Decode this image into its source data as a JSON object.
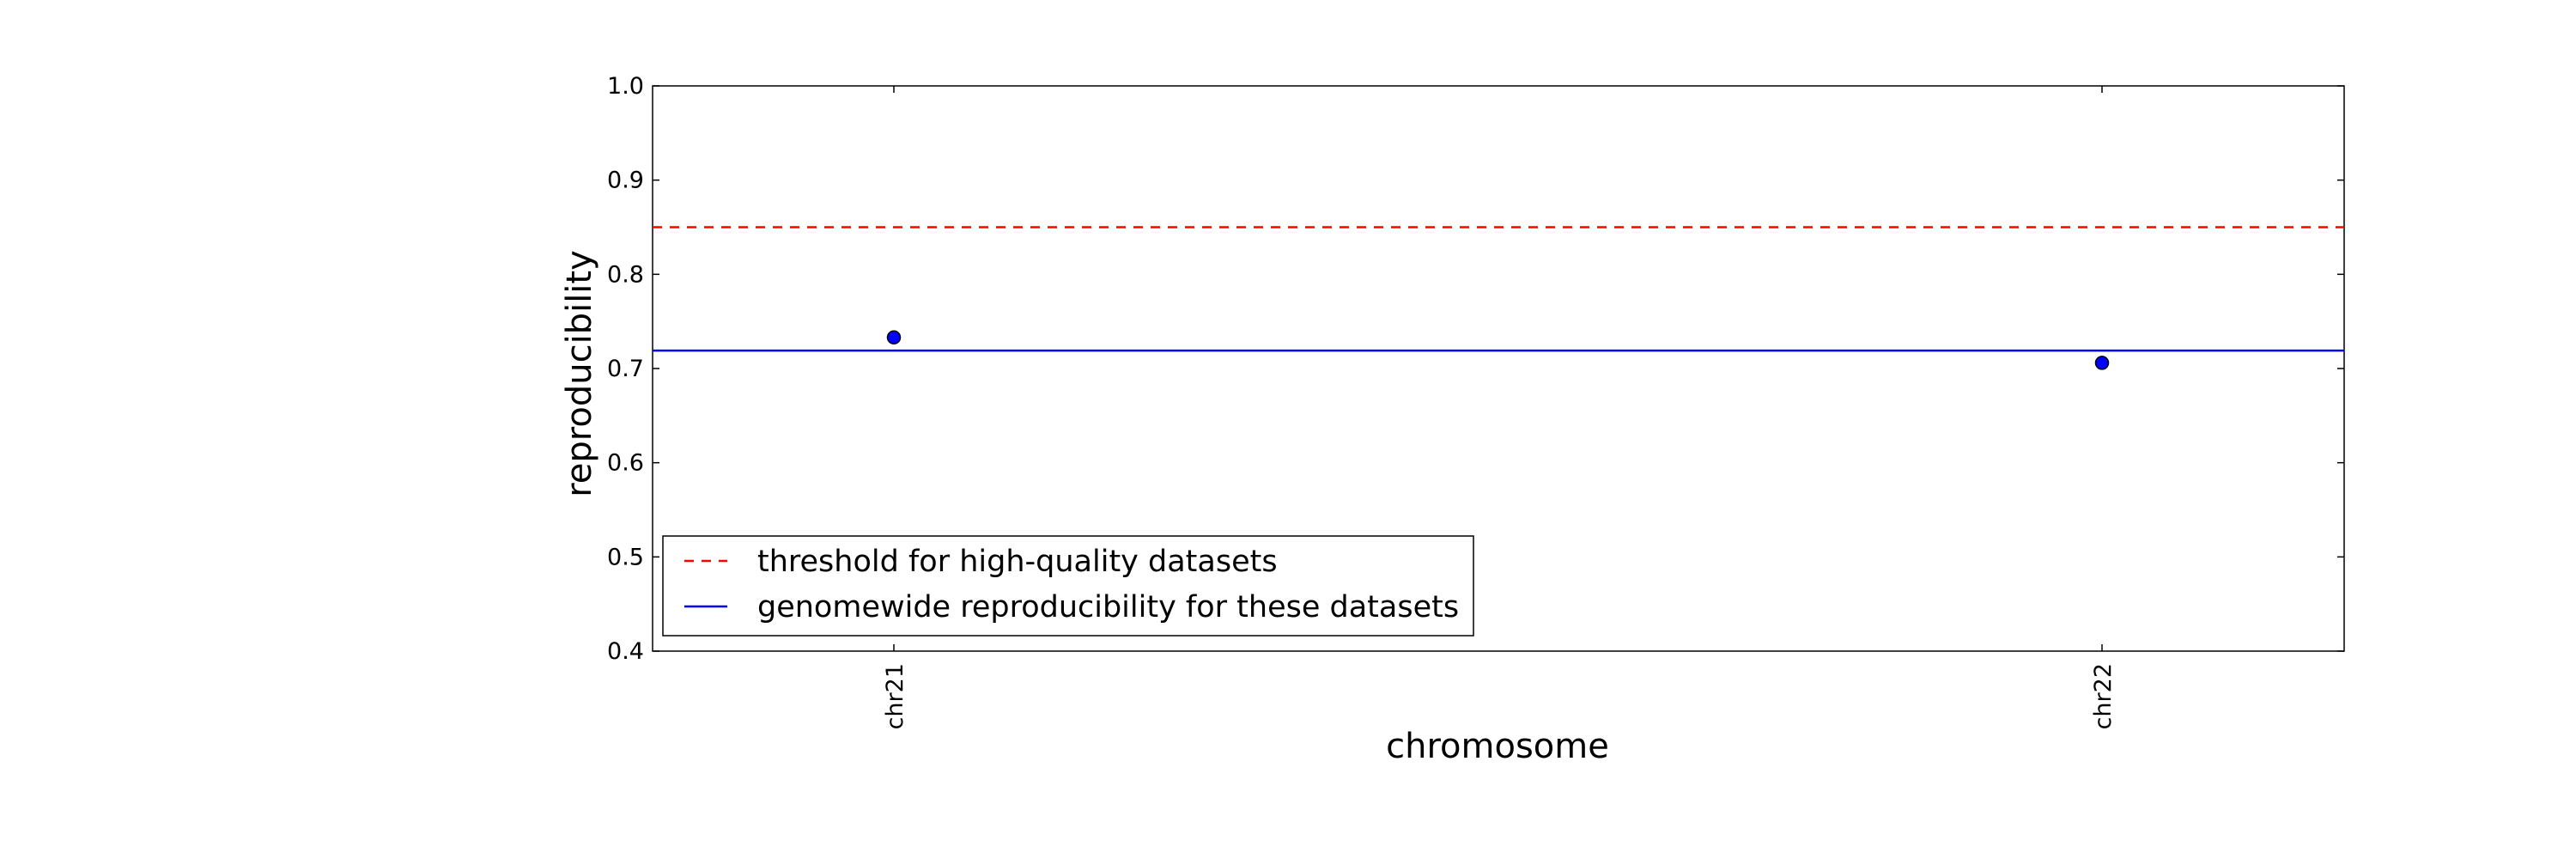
{
  "chart_data": {
    "type": "scatter",
    "xlabel": "chromosome",
    "ylabel": "reproducibility",
    "ylim": [
      0.4,
      1.0
    ],
    "y_ticks": [
      "0.4",
      "0.5",
      "0.6",
      "0.7",
      "0.8",
      "0.9",
      "1.0"
    ],
    "categories": [
      "chr21",
      "chr22"
    ],
    "series": [
      {
        "values": [
          0.733,
          0.706
        ],
        "color": "#0000ff"
      }
    ],
    "reference_lines": [
      {
        "label": "threshold for high-quality datasets",
        "y": 0.85,
        "style": "dashed",
        "color": "#ff0000"
      },
      {
        "label": "genomewide reproducibility for these datasets",
        "y": 0.719,
        "style": "solid",
        "color": "#0000ff"
      }
    ],
    "legend_placement": "lower-left",
    "grid": false
  }
}
